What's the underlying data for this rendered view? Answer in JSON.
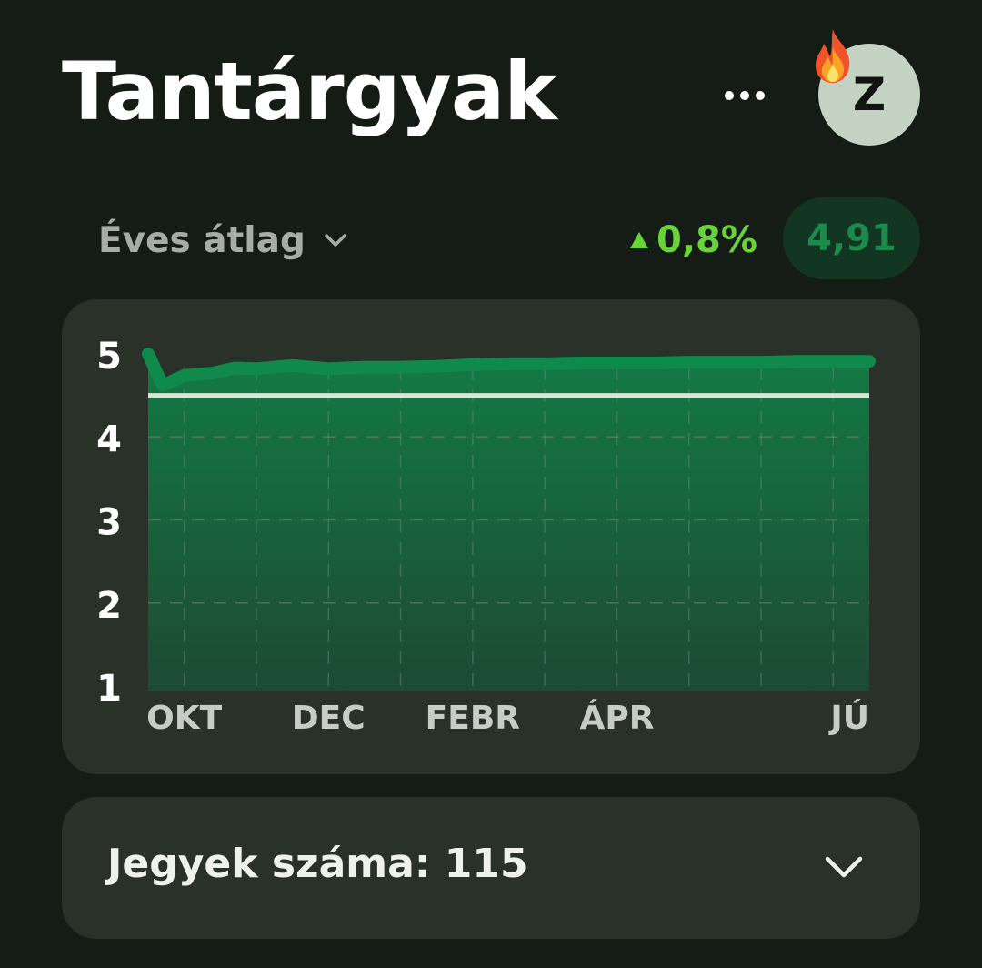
{
  "header": {
    "title": "Tantárgyak",
    "avatar_letter": "Z",
    "menu_icon": "more-horizontal-icon",
    "streak_icon": "fire-icon"
  },
  "summary": {
    "period_label": "Éves átlag",
    "change": "0,8%",
    "change_direction": "up",
    "average": "4,91"
  },
  "colors": {
    "background": "#151c16",
    "card": "#293129",
    "accent_green": "#69d23b",
    "line_green": "#0f8a4c",
    "pill_bg": "#123622",
    "pill_text": "#1c8a4d"
  },
  "chart_data": {
    "type": "area",
    "title": "",
    "xlabel": "",
    "ylabel": "",
    "ylim": [
      1,
      5
    ],
    "yticks": [
      "5",
      "4",
      "3",
      "2",
      "1"
    ],
    "xlim": [
      0,
      10
    ],
    "xticks": [
      {
        "label": "OKT",
        "x": 0.5
      },
      {
        "label": "DEC",
        "x": 2.5
      },
      {
        "label": "FEBR",
        "x": 4.5
      },
      {
        "label": "ÁPR",
        "x": 6.5
      },
      {
        "label": "JÚ",
        "x": 8.5
      }
    ],
    "reference_line": 4.5,
    "series": [
      {
        "x": [
          0,
          0.2,
          0.5,
          0.9,
          1.2,
          1.5,
          2.0,
          2.5,
          3.0,
          3.5,
          4.0,
          4.5,
          5.0,
          5.5,
          6.0,
          6.5,
          7.0,
          7.5,
          8.0,
          8.5,
          9.0,
          9.5,
          10
        ],
        "values": [
          5.0,
          4.62,
          4.74,
          4.77,
          4.83,
          4.82,
          4.86,
          4.82,
          4.84,
          4.84,
          4.85,
          4.87,
          4.88,
          4.88,
          4.89,
          4.89,
          4.89,
          4.9,
          4.9,
          4.9,
          4.91,
          4.91,
          4.91
        ]
      }
    ],
    "grid": true
  },
  "grades": {
    "count_label": "Jegyek száma: 115"
  }
}
